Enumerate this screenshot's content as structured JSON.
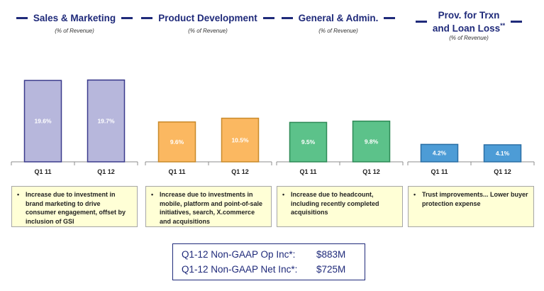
{
  "colors": {
    "title": "#1f2a7a",
    "note_bg": "#ffffd6",
    "axis": "#8c8c8c"
  },
  "panels": [
    {
      "title": "Sales & Marketing",
      "title_suffix": "",
      "subtitle": "(% of Revenue)",
      "note": "Increase due to investment in brand marketing to drive consumer engagement, offset by inclusion of GSI",
      "chart_data": {
        "type": "bar",
        "categories": [
          "Q1 11",
          "Q1 12"
        ],
        "values": [
          19.6,
          19.7
        ],
        "labels": [
          "19.6%",
          "19.7%"
        ],
        "ylim": [
          0,
          20
        ],
        "fill": "#b7b7dc",
        "stroke": "#3a3a8c",
        "label_color": "#ffffff"
      }
    },
    {
      "title": "Product Development",
      "title_suffix": "",
      "subtitle": "(% of Revenue)",
      "note": "Increase due to investments in mobile, platform and point-of-sale initiatives, search, X.commerce and acquisitions",
      "chart_data": {
        "type": "bar",
        "categories": [
          "Q1 11",
          "Q1 12"
        ],
        "values": [
          9.6,
          10.5
        ],
        "labels": [
          "9.6%",
          "10.5%"
        ],
        "ylim": [
          0,
          20
        ],
        "fill": "#fbb861",
        "stroke": "#c98a2a",
        "label_color": "#ffffff"
      }
    },
    {
      "title": "General & Admin.",
      "title_suffix": "",
      "subtitle": "(% of Revenue)",
      "note": "Increase due to headcount, including recently completed acquisitions",
      "chart_data": {
        "type": "bar",
        "categories": [
          "Q1 11",
          "Q1 12"
        ],
        "values": [
          9.5,
          9.8
        ],
        "labels": [
          "9.5%",
          "9.8%"
        ],
        "ylim": [
          0,
          20
        ],
        "fill": "#5cc28a",
        "stroke": "#2f8a57",
        "label_color": "#ffffff"
      }
    },
    {
      "title": "Prov. for Trxn",
      "title_line2": "and Loan Loss",
      "title_suffix": "**",
      "subtitle": "(% of Revenue)",
      "note": "Trust improvements... Lower buyer protection expense",
      "chart_data": {
        "type": "bar",
        "categories": [
          "Q1 11",
          "Q1 12"
        ],
        "values": [
          4.2,
          4.1
        ],
        "labels": [
          "4.2%",
          "4.1%"
        ],
        "ylim": [
          0,
          20
        ],
        "fill": "#4d9cd6",
        "stroke": "#2b6fa4",
        "label_color": "#ffffff"
      }
    }
  ],
  "summary": {
    "op_label": "Q1-12 Non-GAAP Op Inc*:",
    "op_value": "$883M",
    "net_label": "Q1-12 Non-GAAP Net Inc*:",
    "net_value": "$725M"
  },
  "note_bullet": "•"
}
